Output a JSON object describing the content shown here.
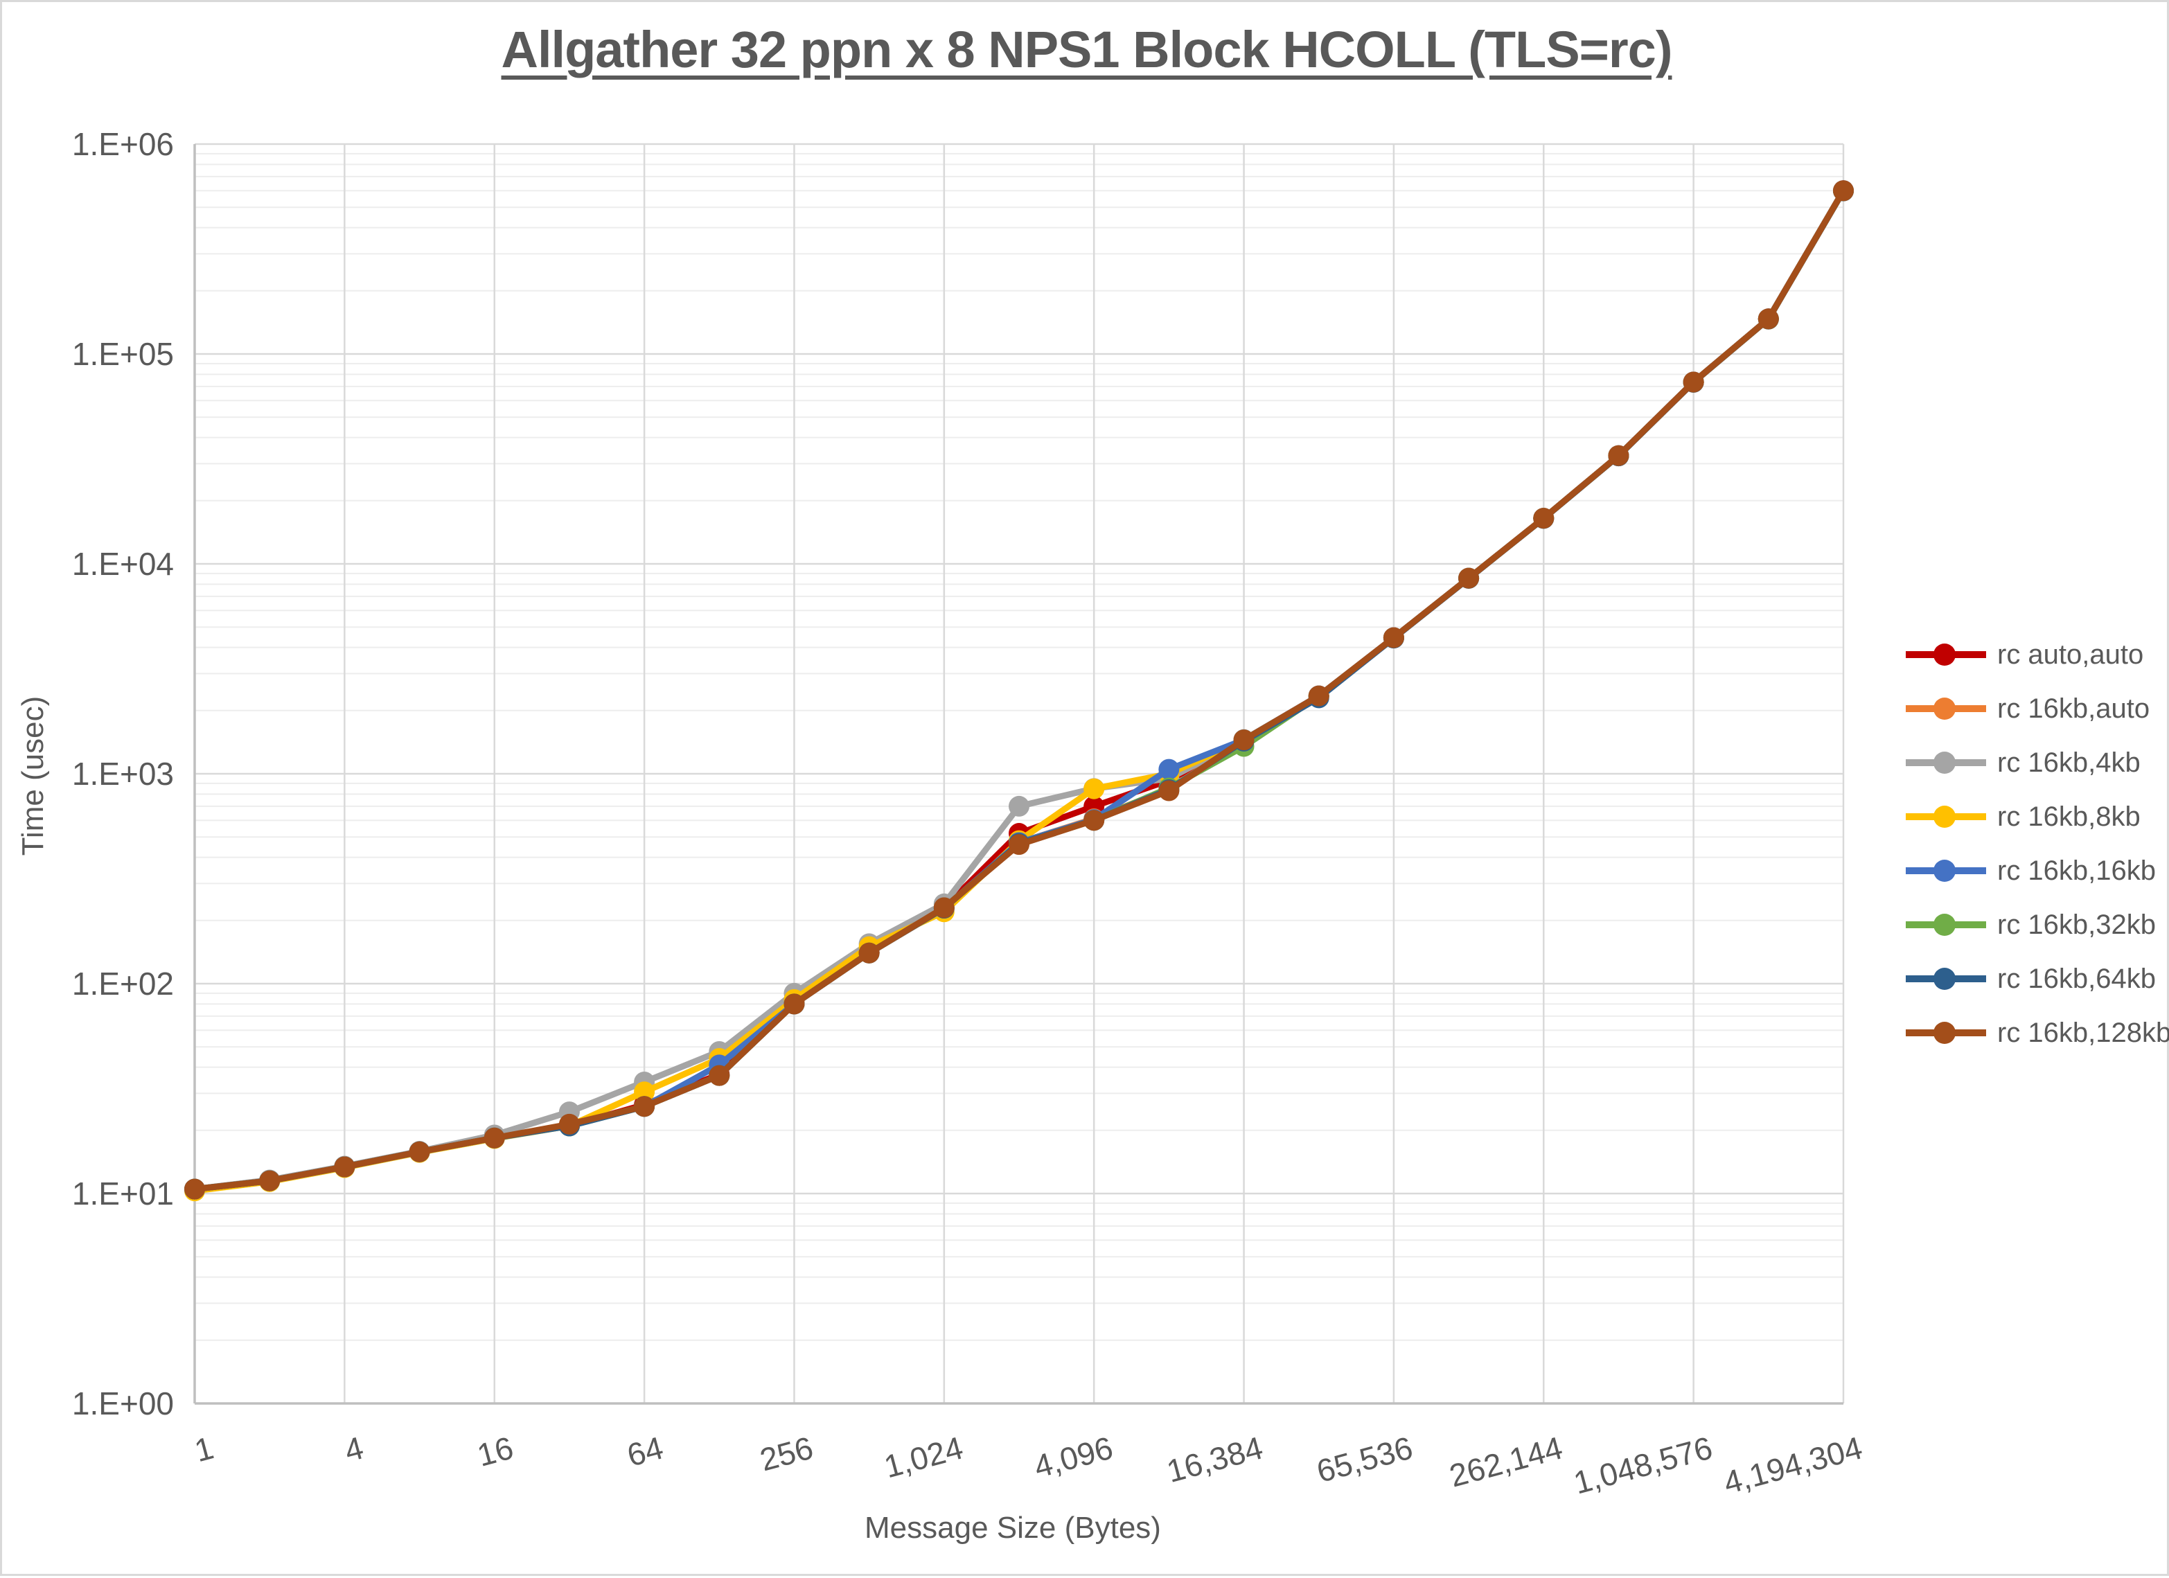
{
  "chart_title": "Allgather 32 ppn x 8 NPS1 Block HCOLL (TLS=rc)",
  "axes": {
    "x_title": "Message Size (Bytes)",
    "y_title": "Time (usec)",
    "text_color": "#595959"
  },
  "colors": {
    "title_text": "#595959",
    "tick_text": "#595959",
    "major_grid": "#d9d9d9",
    "minor_grid": "#ededed",
    "axis_line": "#bfbfbf",
    "frame_border": "#d9d9d9",
    "background": "#ffffff"
  },
  "chart_data": {
    "type": "line",
    "title": "Allgather 32 ppn x 8 NPS1 Block HCOLL (TLS=rc)",
    "xlabel": "Message Size (Bytes)",
    "ylabel": "Time (usec)",
    "x_scale": "log2",
    "y_scale": "log10",
    "xlim": [
      1,
      4194304
    ],
    "ylim": [
      1,
      1000000
    ],
    "grid": "major and minor log gridlines, horizontal minors only",
    "legend_position": "right",
    "marker": "circle",
    "x": [
      1,
      2,
      4,
      8,
      16,
      32,
      64,
      128,
      256,
      512,
      1024,
      2048,
      4096,
      8192,
      16384,
      32768,
      65536,
      131072,
      262144,
      524288,
      1048576,
      2097152,
      4194304
    ],
    "x_tick_values": [
      1,
      4,
      16,
      64,
      256,
      1024,
      4096,
      16384,
      65536,
      262144,
      1048576,
      4194304
    ],
    "x_tick_labels": [
      "1",
      "4",
      "16",
      "64",
      "256",
      "1,024",
      "4,096",
      "16,384",
      "65,536",
      "262,144",
      "1,048,576",
      "4,194,304"
    ],
    "y_tick_values": [
      1,
      10,
      100,
      1000,
      10000,
      100000,
      1000000
    ],
    "y_tick_labels": [
      "1.E+00",
      "1.E+01",
      "1.E+02",
      "1.E+03",
      "1.E+04",
      "1.E+05",
      "1.E+06"
    ],
    "series": [
      {
        "name": "rc auto,auto",
        "color": "#C00000",
        "values": [
          10.5,
          11.5,
          13.4,
          15.8,
          18.4,
          21,
          26.5,
          37,
          81,
          141,
          230,
          520,
          700,
          930,
          1450,
          2350,
          4450,
          8550,
          16500,
          32800,
          73500,
          147000,
          600000
        ]
      },
      {
        "name": "rc 16kb,auto",
        "color": "#ED7D31",
        "values": [
          10.5,
          11.5,
          13.4,
          15.8,
          18.4,
          21,
          26,
          36.5,
          80,
          140,
          228,
          470,
          610,
          845,
          1440,
          2340,
          4440,
          8540,
          16480,
          32700,
          73300,
          146500,
          598000
        ]
      },
      {
        "name": "rc 16kb,4kb",
        "color": "#A5A5A5",
        "values": [
          10.5,
          11.6,
          13.5,
          15.9,
          19,
          24.5,
          34,
          47.5,
          90,
          155,
          240,
          700,
          850,
          950,
          1455,
          2350,
          4450,
          8550,
          16500,
          32800,
          73500,
          147000,
          600000
        ]
      },
      {
        "name": "rc 16kb,8kb",
        "color": "#FFC000",
        "values": [
          10.3,
          11.4,
          13.3,
          15.7,
          18.3,
          21,
          30.5,
          44,
          84,
          150,
          220,
          480,
          848,
          1000,
          1450,
          2345,
          4445,
          8545,
          16490,
          32750,
          73400,
          146800,
          599000
        ]
      },
      {
        "name": "rc 16kb,16kb",
        "color": "#4472C4",
        "values": [
          10.5,
          11.5,
          13.4,
          15.8,
          18.4,
          21,
          26,
          41,
          80,
          140,
          229,
          470,
          605,
          1050,
          1450,
          2350,
          4450,
          8550,
          16500,
          32800,
          73500,
          147000,
          600000
        ]
      },
      {
        "name": "rc 16kb,32kb",
        "color": "#70AD47",
        "values": [
          10.5,
          11.5,
          13.4,
          15.8,
          18.4,
          21,
          26,
          36.5,
          80,
          140,
          229,
          465,
          600,
          855,
          1350,
          2345,
          4440,
          8540,
          16480,
          32750,
          73400,
          146800,
          599000
        ]
      },
      {
        "name": "rc 16kb,64kb",
        "color": "#2D5F8D",
        "values": [
          10.5,
          11.5,
          13.4,
          15.8,
          18.4,
          21,
          26,
          36.5,
          80,
          140,
          229,
          465,
          600,
          840,
          1430,
          2300,
          4430,
          8530,
          16470,
          32700,
          73300,
          146700,
          598500
        ]
      },
      {
        "name": "rc 16kb,128kb",
        "color": "#A34E1A",
        "values": [
          10.5,
          11.5,
          13.4,
          15.8,
          18.4,
          21.4,
          26,
          36.5,
          80,
          140,
          230,
          460,
          600,
          830,
          1450,
          2350,
          4450,
          8550,
          16500,
          32800,
          73500,
          147000,
          600000
        ]
      }
    ]
  }
}
